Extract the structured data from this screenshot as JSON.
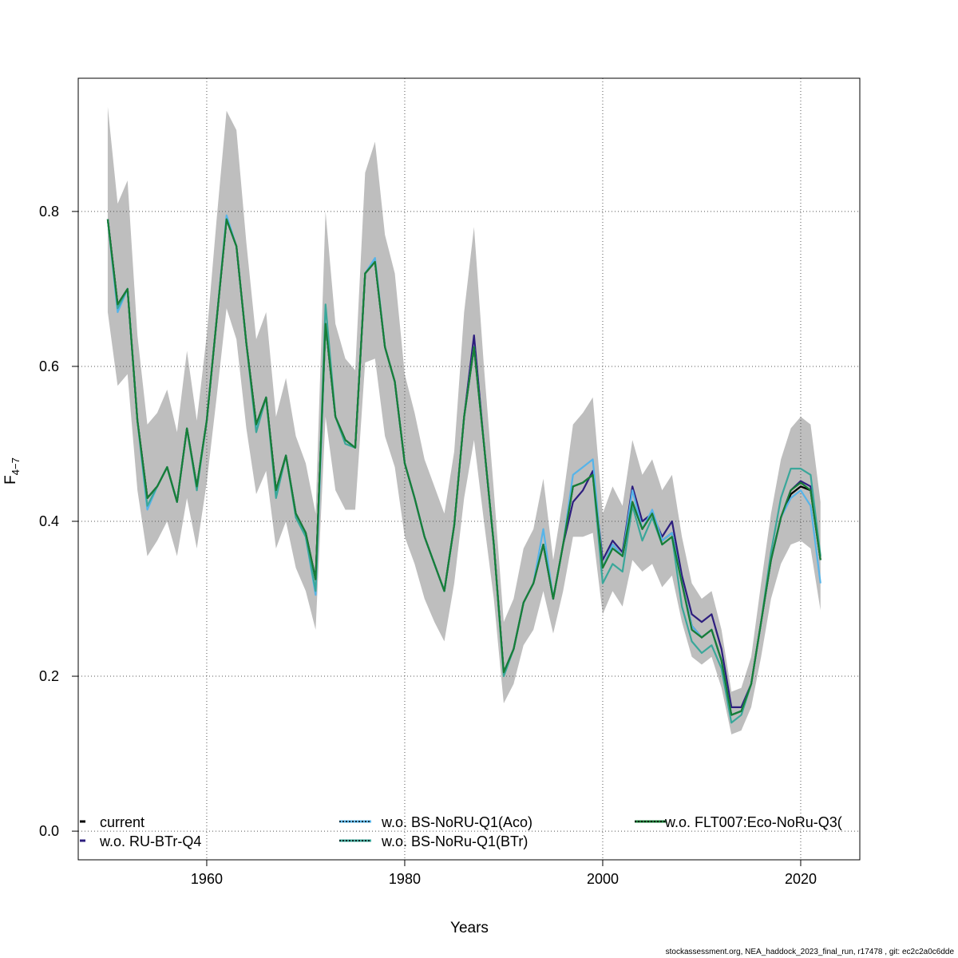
{
  "chart_data": {
    "type": "line",
    "xlabel": "Years",
    "ylabel": "F",
    "ylabel_sub": "4−7",
    "footer": "stockassessment.org, NEA_haddock_2023_final_run, r17478 , git: ec2c2a0c6dde",
    "x": [
      1950,
      1951,
      1952,
      1953,
      1954,
      1955,
      1956,
      1957,
      1958,
      1959,
      1960,
      1961,
      1962,
      1963,
      1964,
      1965,
      1966,
      1967,
      1968,
      1969,
      1970,
      1971,
      1972,
      1973,
      1974,
      1975,
      1976,
      1977,
      1978,
      1979,
      1980,
      1981,
      1982,
      1983,
      1984,
      1985,
      1986,
      1987,
      1988,
      1989,
      1990,
      1991,
      1992,
      1993,
      1994,
      1995,
      1996,
      1997,
      1998,
      1999,
      2000,
      2001,
      2002,
      2003,
      2004,
      2005,
      2006,
      2007,
      2008,
      2009,
      2010,
      2011,
      2012,
      2013,
      2014,
      2015,
      2016,
      2017,
      2018,
      2019,
      2020,
      2021,
      2022
    ],
    "xlim": [
      1947.02,
      2025.97
    ],
    "ylim": [
      -0.037,
      0.972
    ],
    "xticks": [
      1960,
      1980,
      2000,
      2020
    ],
    "yticks": [
      {
        "value": 0,
        "label": "0.0"
      },
      0.2,
      0.4,
      0.6,
      0.8
    ],
    "grid": true,
    "band": {
      "color": "#bebebe",
      "upper": [
        0.935,
        0.81,
        0.84,
        0.64,
        0.525,
        0.54,
        0.57,
        0.515,
        0.62,
        0.53,
        0.64,
        0.79,
        0.93,
        0.905,
        0.76,
        0.635,
        0.67,
        0.535,
        0.585,
        0.51,
        0.475,
        0.41,
        0.8,
        0.655,
        0.61,
        0.595,
        0.85,
        0.89,
        0.77,
        0.72,
        0.59,
        0.54,
        0.48,
        0.445,
        0.41,
        0.49,
        0.67,
        0.78,
        0.6,
        0.44,
        0.27,
        0.3,
        0.365,
        0.39,
        0.455,
        0.35,
        0.43,
        0.525,
        0.54,
        0.56,
        0.41,
        0.445,
        0.42,
        0.505,
        0.46,
        0.48,
        0.44,
        0.46,
        0.38,
        0.32,
        0.3,
        0.31,
        0.26,
        0.18,
        0.185,
        0.225,
        0.32,
        0.41,
        0.48,
        0.52,
        0.535,
        0.525,
        0.425
      ],
      "lower": [
        0.67,
        0.575,
        0.59,
        0.44,
        0.355,
        0.375,
        0.4,
        0.355,
        0.43,
        0.365,
        0.45,
        0.56,
        0.675,
        0.635,
        0.52,
        0.435,
        0.465,
        0.365,
        0.4,
        0.34,
        0.31,
        0.26,
        0.535,
        0.44,
        0.415,
        0.415,
        0.605,
        0.61,
        0.51,
        0.47,
        0.38,
        0.345,
        0.3,
        0.27,
        0.245,
        0.32,
        0.43,
        0.505,
        0.4,
        0.3,
        0.165,
        0.19,
        0.24,
        0.26,
        0.31,
        0.255,
        0.31,
        0.38,
        0.38,
        0.385,
        0.28,
        0.31,
        0.29,
        0.35,
        0.335,
        0.345,
        0.315,
        0.33,
        0.27,
        0.225,
        0.215,
        0.225,
        0.185,
        0.125,
        0.13,
        0.16,
        0.225,
        0.3,
        0.345,
        0.37,
        0.375,
        0.365,
        0.285
      ]
    },
    "series": [
      {
        "name": "current",
        "color": "#000000",
        "values": [
          0.79,
          0.68,
          0.7,
          0.53,
          0.43,
          0.445,
          0.47,
          0.425,
          0.52,
          0.445,
          0.53,
          0.66,
          0.79,
          0.755,
          0.63,
          0.525,
          0.56,
          0.44,
          0.485,
          0.41,
          0.385,
          0.325,
          0.655,
          0.535,
          0.505,
          0.495,
          0.72,
          0.735,
          0.625,
          0.58,
          0.475,
          0.43,
          0.38,
          0.345,
          0.31,
          0.395,
          0.535,
          0.625,
          0.5,
          0.37,
          0.205,
          0.235,
          0.295,
          0.32,
          0.37,
          0.3,
          0.37,
          0.445,
          0.45,
          0.46,
          0.34,
          0.37,
          0.355,
          0.425,
          0.39,
          0.41,
          0.375,
          0.385,
          0.32,
          0.265,
          0.25,
          0.26,
          0.22,
          0.15,
          0.155,
          0.19,
          0.27,
          0.35,
          0.405,
          0.435,
          0.445,
          0.44,
          0.35
        ]
      },
      {
        "name": "w.o. RU-BTr-Q4",
        "color": "#2d1e7e",
        "values": [
          0.79,
          0.68,
          0.7,
          0.53,
          0.43,
          0.445,
          0.47,
          0.425,
          0.52,
          0.445,
          0.53,
          0.66,
          0.79,
          0.755,
          0.63,
          0.525,
          0.56,
          0.44,
          0.485,
          0.41,
          0.385,
          0.325,
          0.655,
          0.535,
          0.505,
          0.495,
          0.72,
          0.735,
          0.625,
          0.58,
          0.475,
          0.43,
          0.38,
          0.345,
          0.31,
          0.395,
          0.535,
          0.64,
          0.5,
          0.37,
          0.205,
          0.235,
          0.295,
          0.32,
          0.37,
          0.3,
          0.37,
          0.425,
          0.44,
          0.465,
          0.35,
          0.375,
          0.36,
          0.445,
          0.4,
          0.41,
          0.38,
          0.4,
          0.33,
          0.28,
          0.27,
          0.28,
          0.235,
          0.16,
          0.16,
          0.19,
          0.27,
          0.35,
          0.405,
          0.44,
          0.452,
          0.445,
          0.35
        ]
      },
      {
        "name": "w.o. BS-NoRU-Q1(Aco)",
        "color": "#56b4e9",
        "values": [
          0.79,
          0.67,
          0.7,
          0.53,
          0.415,
          0.445,
          0.47,
          0.425,
          0.52,
          0.445,
          0.53,
          0.66,
          0.795,
          0.755,
          0.63,
          0.52,
          0.56,
          0.435,
          0.485,
          0.41,
          0.38,
          0.305,
          0.655,
          0.535,
          0.505,
          0.495,
          0.72,
          0.74,
          0.625,
          0.58,
          0.475,
          0.43,
          0.38,
          0.345,
          0.31,
          0.395,
          0.535,
          0.625,
          0.5,
          0.37,
          0.205,
          0.235,
          0.295,
          0.32,
          0.39,
          0.3,
          0.37,
          0.46,
          0.47,
          0.48,
          0.34,
          0.37,
          0.355,
          0.44,
          0.39,
          0.415,
          0.375,
          0.385,
          0.32,
          0.265,
          0.25,
          0.26,
          0.22,
          0.15,
          0.155,
          0.19,
          0.27,
          0.35,
          0.405,
          0.43,
          0.44,
          0.42,
          0.32
        ]
      },
      {
        "name": "w.o. BS-NoRu-Q1(BTr)",
        "color": "#3aa79a",
        "values": [
          0.79,
          0.675,
          0.7,
          0.53,
          0.42,
          0.445,
          0.47,
          0.425,
          0.52,
          0.44,
          0.53,
          0.66,
          0.79,
          0.755,
          0.63,
          0.515,
          0.56,
          0.43,
          0.485,
          0.405,
          0.38,
          0.31,
          0.68,
          0.535,
          0.5,
          0.495,
          0.72,
          0.735,
          0.625,
          0.58,
          0.475,
          0.43,
          0.38,
          0.345,
          0.31,
          0.395,
          0.535,
          0.625,
          0.5,
          0.37,
          0.2,
          0.235,
          0.295,
          0.32,
          0.37,
          0.3,
          0.37,
          0.445,
          0.45,
          0.46,
          0.32,
          0.345,
          0.335,
          0.42,
          0.375,
          0.405,
          0.37,
          0.38,
          0.29,
          0.245,
          0.23,
          0.24,
          0.21,
          0.14,
          0.15,
          0.19,
          0.27,
          0.36,
          0.43,
          0.468,
          0.468,
          0.46,
          0.355
        ]
      },
      {
        "name": "w.o. FLT007:Eco-NoRu-Q3(",
        "color": "#177e36",
        "values": [
          0.79,
          0.68,
          0.7,
          0.53,
          0.43,
          0.445,
          0.47,
          0.425,
          0.52,
          0.445,
          0.53,
          0.66,
          0.79,
          0.755,
          0.63,
          0.525,
          0.56,
          0.44,
          0.485,
          0.41,
          0.385,
          0.325,
          0.655,
          0.535,
          0.505,
          0.495,
          0.72,
          0.735,
          0.625,
          0.58,
          0.475,
          0.43,
          0.38,
          0.345,
          0.31,
          0.395,
          0.535,
          0.625,
          0.5,
          0.37,
          0.205,
          0.235,
          0.295,
          0.32,
          0.37,
          0.3,
          0.37,
          0.445,
          0.45,
          0.46,
          0.34,
          0.365,
          0.355,
          0.425,
          0.39,
          0.41,
          0.37,
          0.38,
          0.32,
          0.26,
          0.25,
          0.26,
          0.22,
          0.15,
          0.155,
          0.19,
          0.27,
          0.35,
          0.405,
          0.44,
          0.45,
          0.44,
          0.35
        ]
      }
    ]
  }
}
